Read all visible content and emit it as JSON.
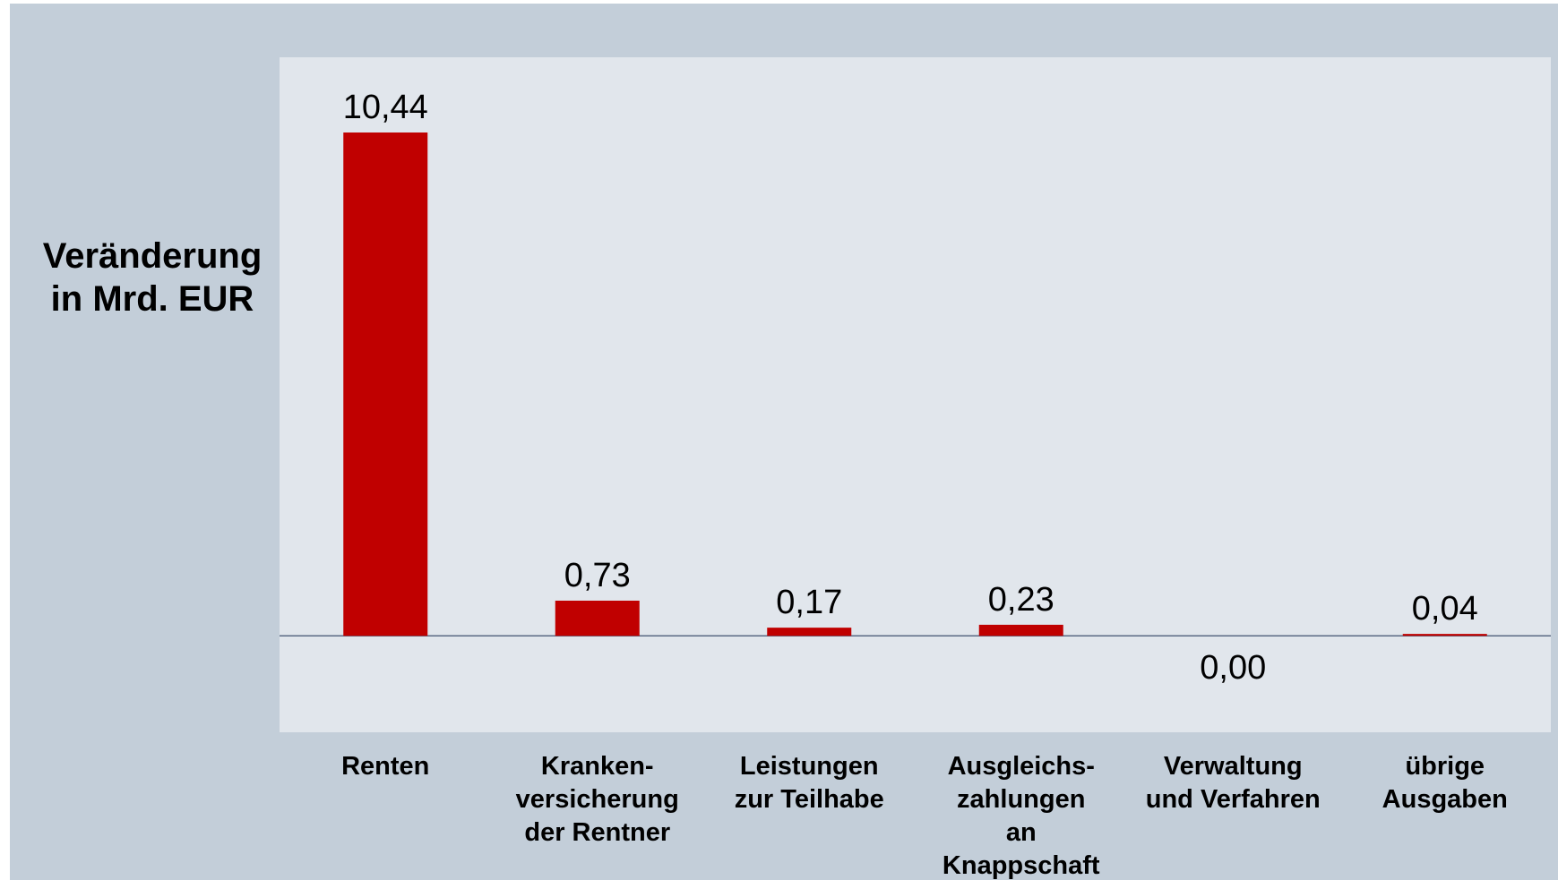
{
  "chart_data": {
    "type": "bar",
    "ylabel": "Veränderung in Mrd. EUR",
    "categories": [
      "Renten",
      "Kranken-\nversicherung\nder Rentner",
      "Leistungen\nzur Teilhabe",
      "Ausgleichs-\nzahlungen\nan\nKnappschaft",
      "Verwaltung\nund Verfahren",
      "übrige\nAusgaben"
    ],
    "values": [
      10.44,
      0.73,
      0.17,
      0.23,
      0.0,
      0.04
    ],
    "value_labels": [
      "10,44",
      "0,73",
      "0,17",
      "0,23",
      "0,00",
      "0,04"
    ],
    "color": "#c00000",
    "ylim": [
      -2,
      12
    ]
  }
}
